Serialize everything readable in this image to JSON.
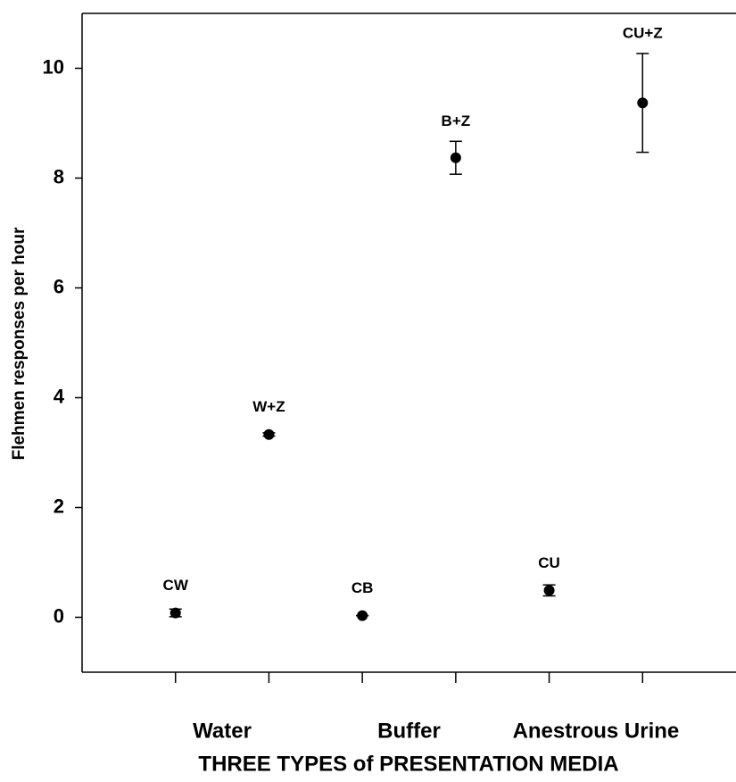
{
  "chart_data": {
    "type": "scatter",
    "x_label": "THREE TYPES of PRESENTATION MEDIA",
    "y_label": "Flehmen responses per hour",
    "x": [
      1,
      2,
      3,
      4,
      5,
      6
    ],
    "values": [
      0.08,
      3.33,
      0.03,
      8.37,
      0.49,
      9.37
    ],
    "errors": [
      0.07,
      0.03,
      0,
      0.3,
      0.1,
      0.9
    ],
    "point_labels": [
      "CW",
      "W+Z",
      "CB",
      "B+Z",
      "CU",
      "CU+Z"
    ],
    "color": "#000000",
    "xlim": [
      0,
      7
    ],
    "ylim": [
      -1,
      11
    ],
    "yticks": [
      0,
      2,
      4,
      6,
      8,
      10
    ],
    "xtick_marks": [
      1,
      2,
      3,
      4,
      5,
      6
    ],
    "xticks": [
      {
        "value": 1.5,
        "label": "Water"
      },
      {
        "value": 3.5,
        "label": "Buffer"
      },
      {
        "value": 5.5,
        "label": "Anestrous Urine"
      }
    ]
  }
}
